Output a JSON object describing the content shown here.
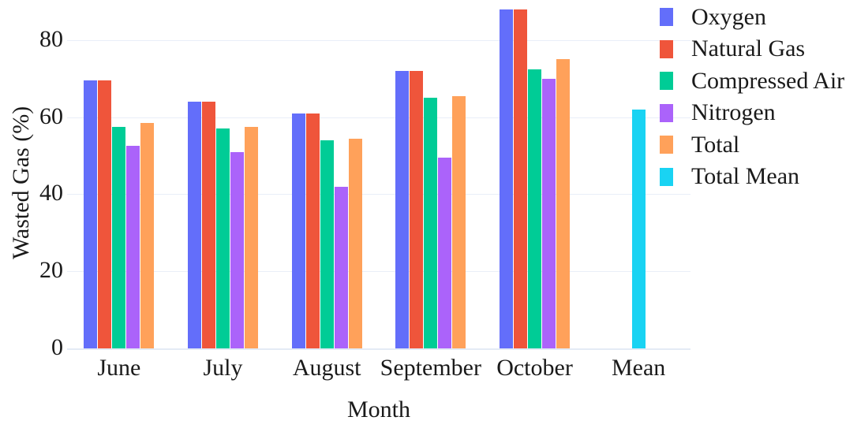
{
  "chart_data": {
    "type": "bar",
    "title": "",
    "xlabel": "Month",
    "ylabel": "Wasted Gas (%)",
    "categories": [
      "June",
      "July",
      "August",
      "September",
      "October",
      "Mean"
    ],
    "series": [
      {
        "name": "Oxygen",
        "color": "#636EFA",
        "values": [
          69.5,
          64,
          61,
          72,
          88,
          null
        ]
      },
      {
        "name": "Natural Gas",
        "color": "#EF553B",
        "values": [
          69.5,
          64,
          61,
          72,
          88,
          null
        ]
      },
      {
        "name": "Compressed Air",
        "color": "#00CC96",
        "values": [
          57.5,
          57,
          54,
          65,
          72.5,
          null
        ]
      },
      {
        "name": "Nitrogen",
        "color": "#AB63FA",
        "values": [
          52.5,
          51,
          42,
          49.5,
          70,
          null
        ]
      },
      {
        "name": "Total",
        "color": "#FFA15A",
        "values": [
          58.5,
          57.5,
          54.5,
          65.5,
          75,
          null
        ]
      },
      {
        "name": "Total Mean",
        "color": "#19D3F3",
        "values": [
          null,
          null,
          null,
          null,
          null,
          62
        ]
      }
    ],
    "yticks": [
      0,
      20,
      40,
      60,
      80
    ],
    "ylim": [
      0,
      90
    ],
    "grid": true,
    "legend_position": "right",
    "gridline_color": "#E9EEF8",
    "zero_line_color": "#E4EBF5",
    "text_color": "#1a1a1a",
    "background_color": "#ffffff"
  }
}
